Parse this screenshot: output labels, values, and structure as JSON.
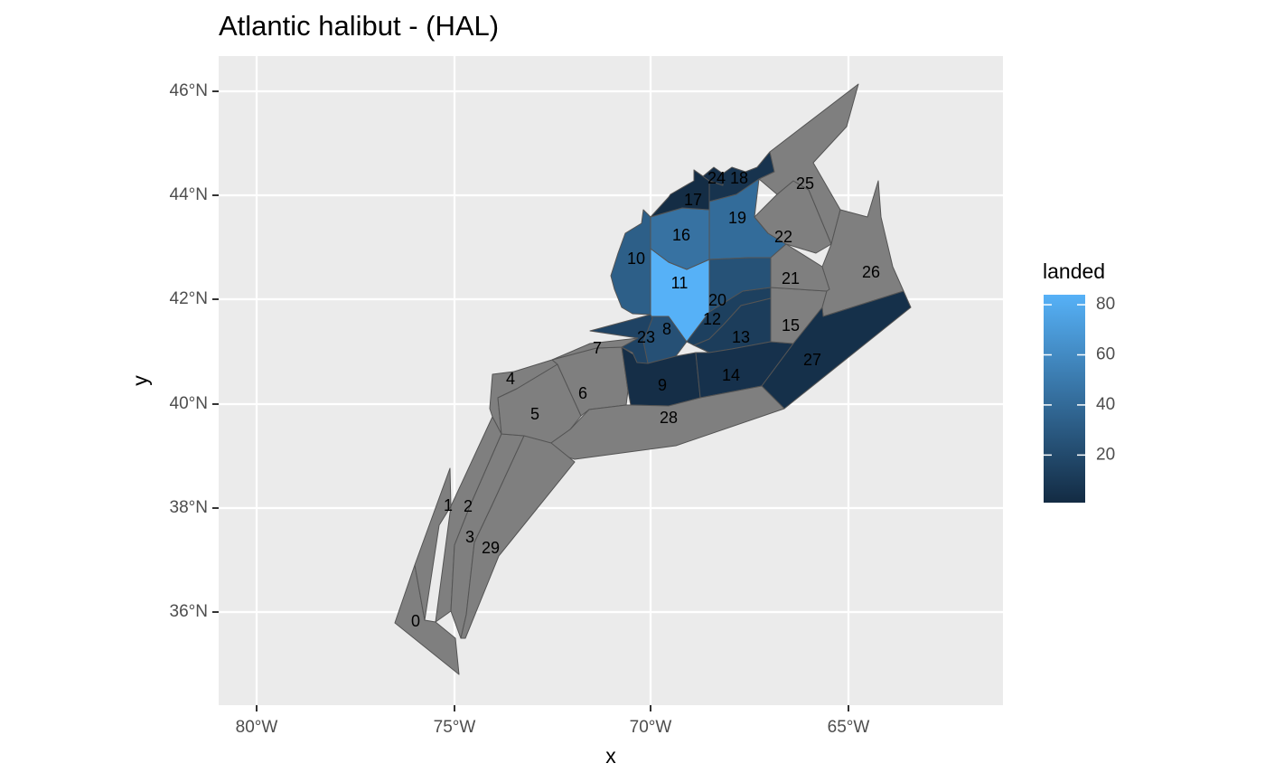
{
  "chart_data": {
    "type": "choropleth map",
    "title": "Atlantic halibut - (HAL)",
    "xlabel": "x",
    "ylabel": "y",
    "x_ticks": [
      "80°W",
      "75°W",
      "70°W",
      "65°W"
    ],
    "y_ticks": [
      "36°N",
      "38°N",
      "40°N",
      "42°N",
      "44°N",
      "46°N"
    ],
    "legend": {
      "title": "landed",
      "ticks": [
        "20",
        "40",
        "60",
        "80"
      ],
      "tick_values": [
        20,
        40,
        60,
        80
      ],
      "range": [
        1,
        84
      ],
      "low_color": "#132b43",
      "high_color": "#56b1f7"
    },
    "na_color": "#7f7f7f",
    "areas": [
      {
        "id": "0",
        "landed": null
      },
      {
        "id": "1",
        "landed": null
      },
      {
        "id": "2",
        "landed": null
      },
      {
        "id": "3",
        "landed": null
      },
      {
        "id": "4",
        "landed": null
      },
      {
        "id": "5",
        "landed": null
      },
      {
        "id": "6",
        "landed": null
      },
      {
        "id": "7",
        "landed": null
      },
      {
        "id": "8",
        "landed": 24
      },
      {
        "id": "9",
        "landed": 3
      },
      {
        "id": "10",
        "landed": 33
      },
      {
        "id": "11",
        "landed": 84
      },
      {
        "id": "12",
        "landed": 14
      },
      {
        "id": "13",
        "landed": 12
      },
      {
        "id": "14",
        "landed": 5
      },
      {
        "id": "15",
        "landed": null
      },
      {
        "id": "16",
        "landed": 45
      },
      {
        "id": "17",
        "landed": 2
      },
      {
        "id": "18",
        "landed": 6
      },
      {
        "id": "19",
        "landed": 41
      },
      {
        "id": "20",
        "landed": 25
      },
      {
        "id": "21",
        "landed": null
      },
      {
        "id": "22",
        "landed": null
      },
      {
        "id": "23",
        "landed": 16
      },
      {
        "id": "24",
        "landed": 3
      },
      {
        "id": "25",
        "landed": null
      },
      {
        "id": "26",
        "landed": null
      },
      {
        "id": "27",
        "landed": 4
      },
      {
        "id": "28",
        "landed": null
      },
      {
        "id": "29",
        "landed": null
      }
    ]
  }
}
